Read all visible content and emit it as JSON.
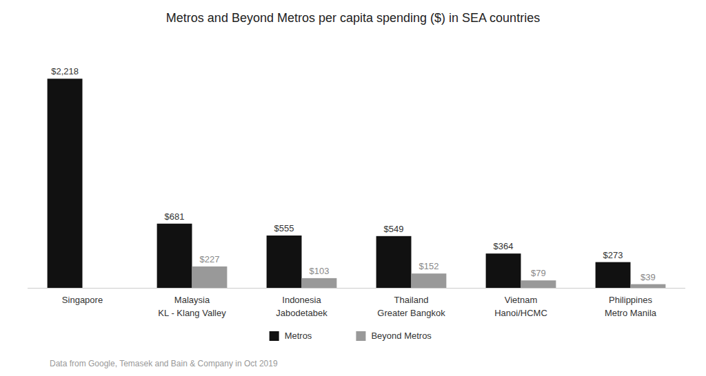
{
  "chart_data": {
    "type": "bar",
    "title": "Metros and Beyond Metros per capita spending ($) in SEA countries",
    "footnote": "Data from Google, Temasek and Bain & Company in Oct 2019",
    "categories": [
      "Singapore",
      "Malaysia\nKL - Klang Valley",
      "Indonesia\nJabodetabek",
      "Thailand\nGreater Bangkok",
      "Vietnam\nHanoi/HCMC",
      "Philippines\nMetro Manila"
    ],
    "series": [
      {
        "name": "Metros",
        "color": "#111111",
        "values": [
          2218,
          681,
          555,
          549,
          364,
          273
        ],
        "value_labels": [
          "$2,218",
          "$681",
          "$555",
          "$549",
          "$364",
          "$273"
        ]
      },
      {
        "name": "Beyond Metros",
        "color": "#999999",
        "values": [
          null,
          227,
          103,
          152,
          79,
          39
        ],
        "value_labels": [
          null,
          "$227",
          "$103",
          "$152",
          "$79",
          "$39"
        ]
      }
    ],
    "ylim": [
      0,
      2600
    ],
    "tick_labels": "x",
    "data_labels": true,
    "legend": "bottom",
    "grid": false
  }
}
